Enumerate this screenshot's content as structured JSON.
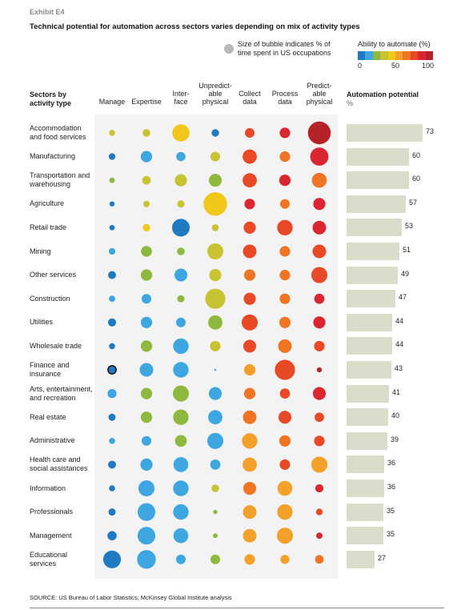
{
  "exhibit": "Exhibit E4",
  "title": "Technical potential for automation across sectors varies depending on mix of activity types",
  "legend": {
    "size_note_line1": "Size of bubble indicates % of",
    "size_note_line2": "time spent in US occupations",
    "color_title": "Ability to automate (%)",
    "color_ticks": [
      "0",
      "50",
      "100"
    ],
    "color_scale": [
      "#1f7ac2",
      "#3ea6e0",
      "#8fb83f",
      "#c8c332",
      "#f2c71b",
      "#f3a12b",
      "#ef7424",
      "#e84a28",
      "#d92630",
      "#b52227"
    ]
  },
  "headers": {
    "sectors_line1": "Sectors by",
    "sectors_line2": "activity type",
    "automation": "Automation potential",
    "automation_unit": "%",
    "columns": [
      [
        "Manage"
      ],
      [
        "Expertise"
      ],
      [
        "Inter-",
        "face"
      ],
      [
        "Unpredict-",
        "able",
        "physical"
      ],
      [
        "Collect",
        "data"
      ],
      [
        "Process",
        "data"
      ],
      [
        "Predict-",
        "able",
        "physical"
      ]
    ]
  },
  "source": "SOURCE: US Bureau of Labor Statistics; McKinsey Global Institute analysis",
  "chart_data": {
    "type": "bubble-matrix-with-bar",
    "columns": [
      "Manage",
      "Expertise",
      "Interface",
      "Unpredictable physical",
      "Collect data",
      "Process data",
      "Predictable physical"
    ],
    "rows": [
      {
        "sector": [
          "Accommodation",
          "and food services"
        ],
        "automation": 73,
        "size": [
          1,
          1.6,
          8,
          1.5,
          2.5,
          3,
          14
        ],
        "color": [
          3,
          3,
          4,
          0,
          7,
          8,
          9
        ]
      },
      {
        "sector": [
          "Manufacturing"
        ],
        "automation": 60,
        "size": [
          1.2,
          3.5,
          2.3,
          2.5,
          5.5,
          3,
          9
        ],
        "color": [
          0,
          1,
          1,
          3,
          7,
          6,
          8
        ]
      },
      {
        "sector": [
          "Transportation and",
          "warehousing"
        ],
        "automation": 60,
        "size": [
          0.8,
          2,
          4,
          4.5,
          5.5,
          3.5,
          6
        ],
        "color": [
          2,
          3,
          3,
          2,
          7,
          8,
          6
        ]
      },
      {
        "sector": [
          "Agriculture"
        ],
        "automation": 57,
        "size": [
          0.7,
          1.1,
          1.4,
          15,
          3,
          2.5,
          4
        ],
        "color": [
          0,
          3,
          3,
          4,
          8,
          6,
          8
        ]
      },
      {
        "sector": [
          "Retail trade"
        ],
        "automation": 53,
        "size": [
          0.8,
          1.5,
          8.5,
          1.3,
          4,
          6.5,
          5
        ],
        "color": [
          0,
          4,
          0,
          3,
          7,
          7,
          8
        ]
      },
      {
        "sector": [
          "Mining"
        ],
        "automation": 51,
        "size": [
          1.2,
          3.2,
          1.6,
          7,
          5,
          3,
          5
        ],
        "color": [
          1,
          2,
          2,
          3,
          7,
          6,
          7
        ]
      },
      {
        "sector": [
          "Other services"
        ],
        "automation": 49,
        "size": [
          1.7,
          3.5,
          4.5,
          4,
          3.5,
          3,
          7
        ],
        "color": [
          0,
          2,
          1,
          3,
          6,
          6,
          7
        ]
      },
      {
        "sector": [
          "Construction"
        ],
        "automation": 47,
        "size": [
          1.1,
          2.5,
          1.4,
          11,
          4,
          3,
          2.8
        ],
        "color": [
          1,
          1,
          2,
          3,
          7,
          6,
          8
        ]
      },
      {
        "sector": [
          "Utilities"
        ],
        "automation": 44,
        "size": [
          1.8,
          3.5,
          2.5,
          5.5,
          7,
          3.5,
          4
        ],
        "color": [
          0,
          1,
          1,
          2,
          7,
          6,
          8
        ]
      },
      {
        "sector": [
          "Wholesale trade"
        ],
        "automation": 44,
        "size": [
          1,
          3.5,
          6.5,
          3,
          4.5,
          5,
          3
        ],
        "color": [
          0,
          2,
          1,
          3,
          7,
          6,
          7
        ]
      },
      {
        "sector": [
          "Finance and",
          "insurance"
        ],
        "automation": 43,
        "size": [
          1.8,
          5,
          6.5,
          0.1,
          3.5,
          11,
          0.7
        ],
        "color": [
          0,
          1,
          1,
          1,
          5,
          7,
          9
        ]
      },
      {
        "sector": [
          "Arts, entertainment,",
          "and recreation"
        ],
        "automation": 41,
        "size": [
          2.2,
          3.5,
          7,
          4.5,
          3.5,
          2.8,
          4.5
        ],
        "color": [
          1,
          2,
          2,
          1,
          6,
          7,
          8
        ]
      },
      {
        "sector": [
          "Real estate"
        ],
        "automation": 40,
        "size": [
          1.4,
          3.5,
          6.5,
          5.5,
          5,
          4.5,
          2.4
        ],
        "color": [
          0,
          2,
          2,
          1,
          6,
          7,
          7
        ]
      },
      {
        "sector": [
          "Administrative"
        ],
        "automation": 39,
        "size": [
          1,
          2.5,
          3.8,
          7,
          6.5,
          3.5,
          3
        ],
        "color": [
          1,
          1,
          2,
          1,
          5,
          6,
          7
        ]
      },
      {
        "sector": [
          "Health care and",
          "social assistances"
        ],
        "automation": 36,
        "size": [
          1.7,
          4,
          6,
          2.8,
          5.5,
          3,
          7
        ],
        "color": [
          0,
          1,
          1,
          1,
          5,
          7,
          5
        ]
      },
      {
        "sector": [
          "Information"
        ],
        "automation": 36,
        "size": [
          1,
          7,
          6.5,
          1.6,
          4.5,
          6,
          1.8
        ],
        "color": [
          0,
          1,
          1,
          3,
          6,
          5,
          8
        ]
      },
      {
        "sector": [
          "Professionals"
        ],
        "automation": 35,
        "size": [
          1.4,
          8.5,
          6.5,
          0.5,
          5,
          6.5,
          1.2
        ],
        "color": [
          0,
          1,
          1,
          2,
          5,
          5,
          7
        ]
      },
      {
        "sector": [
          "Management"
        ],
        "automation": 35,
        "size": [
          2.3,
          8.5,
          6,
          0.6,
          5,
          7,
          1.1
        ],
        "color": [
          0,
          1,
          1,
          2,
          5,
          5,
          8
        ]
      },
      {
        "sector": [
          "Educational",
          "services"
        ],
        "automation": 27,
        "size": [
          8.5,
          9.5,
          2.5,
          2.5,
          3,
          2.2,
          2
        ],
        "color": [
          0,
          1,
          1,
          2,
          5,
          5,
          6
        ]
      }
    ]
  }
}
